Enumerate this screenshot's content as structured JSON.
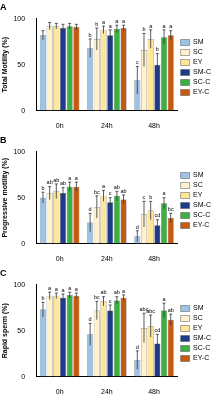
{
  "chart_data": [
    {
      "type": "bar",
      "title": "A",
      "y_label": "Total Motility (%)",
      "categories": [
        "0h",
        "24h",
        "48h"
      ],
      "ylim": [
        0,
        100
      ],
      "yticks": [
        0,
        50,
        100
      ],
      "grid": false,
      "legend": "right",
      "series": [
        {
          "name": "SM",
          "color": "#9dc3e6",
          "values": [
            82,
            68,
            33
          ],
          "errors": [
            5,
            10,
            15
          ],
          "letters": [
            null,
            "b",
            "c"
          ]
        },
        {
          "name": "SC",
          "color": "#fff2cc",
          "values": [
            92,
            78,
            66
          ],
          "errors": [
            4,
            12,
            18
          ],
          "letters": [
            null,
            "b",
            "b"
          ]
        },
        {
          "name": "EY",
          "color": "#ffe699",
          "values": [
            92,
            88,
            78
          ],
          "errors": [
            3,
            4,
            10
          ],
          "letters": [
            null,
            "a",
            "a"
          ]
        },
        {
          "name": "SM-C",
          "color": "#1f3c88",
          "values": [
            90,
            82,
            50
          ],
          "errors": [
            4,
            6,
            12
          ],
          "letters": [
            null,
            "a",
            "b"
          ]
        },
        {
          "name": "SC-C",
          "color": "#3cb043",
          "values": [
            92,
            89,
            80
          ],
          "errors": [
            3,
            4,
            8
          ],
          "letters": [
            null,
            "a",
            "a"
          ]
        },
        {
          "name": "EY-C",
          "color": "#c55a11",
          "values": [
            91,
            90,
            82
          ],
          "errors": [
            3,
            3,
            5
          ],
          "letters": [
            null,
            "a",
            "a"
          ]
        }
      ]
    },
    {
      "type": "bar",
      "title": "B",
      "y_label": "Progressive motility (%)",
      "categories": [
        "0h",
        "24h",
        "48h"
      ],
      "ylim": [
        0,
        100
      ],
      "yticks": [
        0,
        50,
        100
      ],
      "grid": false,
      "legend": "right",
      "series": [
        {
          "name": "SM",
          "color": "#9dc3e6",
          "values": [
            50,
            23,
            8
          ],
          "errors": [
            6,
            10,
            6
          ],
          "letters": [
            "b",
            "d",
            "d"
          ]
        },
        {
          "name": "SC",
          "color": "#fff2cc",
          "values": [
            55,
            40,
            32
          ],
          "errors": [
            7,
            12,
            14
          ],
          "letters": [
            "ab",
            "bc",
            "c"
          ]
        },
        {
          "name": "EY",
          "color": "#ffe699",
          "values": [
            57,
            52,
            36
          ],
          "errors": [
            8,
            6,
            10
          ],
          "letters": [
            "ab",
            "a",
            "b"
          ]
        },
        {
          "name": "SM-C",
          "color": "#1f3c88",
          "values": [
            55,
            45,
            20
          ],
          "errors": [
            6,
            5,
            6
          ],
          "letters": [
            "ab",
            "c",
            "cd"
          ]
        },
        {
          "name": "SC-C",
          "color": "#3cb043",
          "values": [
            62,
            52,
            44
          ],
          "errors": [
            5,
            5,
            6
          ],
          "letters": [
            "a",
            "ab",
            "a"
          ]
        },
        {
          "name": "EY-C",
          "color": "#c55a11",
          "values": [
            62,
            48,
            28
          ],
          "errors": [
            5,
            5,
            5
          ],
          "letters": [
            "a",
            "ab",
            "bc"
          ]
        }
      ]
    },
    {
      "type": "bar",
      "title": "C",
      "y_label": "Rapid sperm (%)",
      "categories": [
        "0h",
        "24h",
        "48h"
      ],
      "ylim": [
        0,
        100
      ],
      "yticks": [
        0,
        50,
        100
      ],
      "grid": false,
      "legend": "right",
      "series": [
        {
          "name": "SM",
          "color": "#9dc3e6",
          "values": [
            73,
            46,
            18
          ],
          "errors": [
            8,
            12,
            10
          ],
          "letters": [
            "b",
            "d",
            "d"
          ]
        },
        {
          "name": "SC",
          "color": "#fff2cc",
          "values": [
            88,
            72,
            53
          ],
          "errors": [
            4,
            10,
            16
          ],
          "letters": [
            "a",
            "bc",
            "abc"
          ]
        },
        {
          "name": "EY",
          "color": "#ffe699",
          "values": [
            88,
            82,
            55
          ],
          "errors": [
            3,
            5,
            12
          ],
          "letters": [
            "a",
            "ab",
            "abc"
          ]
        },
        {
          "name": "SM-C",
          "color": "#1f3c88",
          "values": [
            86,
            72,
            36
          ],
          "errors": [
            4,
            6,
            10
          ],
          "letters": [
            "a",
            "c",
            "cd"
          ]
        },
        {
          "name": "SC-C",
          "color": "#3cb043",
          "values": [
            89,
            83,
            72
          ],
          "errors": [
            3,
            4,
            8
          ],
          "letters": [
            "a",
            "ab",
            "a"
          ]
        },
        {
          "name": "EY-C",
          "color": "#c55a11",
          "values": [
            88,
            86,
            62
          ],
          "errors": [
            3,
            3,
            6
          ],
          "letters": [
            "a",
            "a",
            "ab"
          ]
        }
      ]
    }
  ]
}
